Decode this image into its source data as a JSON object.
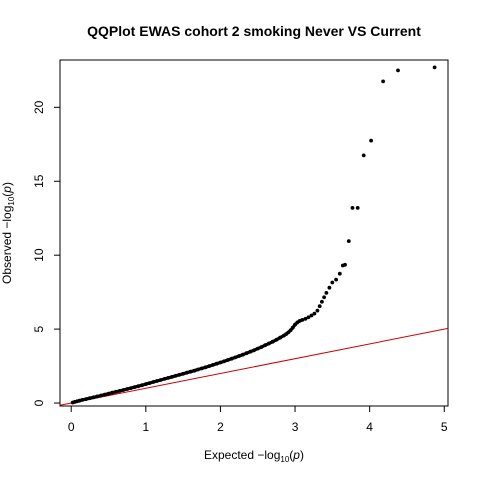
{
  "chart_data": {
    "type": "scatter",
    "title": "QQPlot EWAS cohort 2 smoking Never VS Current",
    "xlabel": {
      "prefix": "Expected  −log",
      "sub": "10",
      "middle": "(",
      "italic": "p",
      "suffix": ")"
    },
    "ylabel": {
      "prefix": "Observed  −log",
      "sub": "10",
      "middle": "(",
      "italic": "p",
      "suffix": ")"
    },
    "xlim": [
      -0.15,
      5.05
    ],
    "ylim": [
      -0.2,
      23.2
    ],
    "xticks": [
      0,
      1,
      2,
      3,
      4,
      5
    ],
    "yticks": [
      0,
      5,
      10,
      15,
      20
    ],
    "reference_line": {
      "slope": 1,
      "intercept": 0,
      "color": "#cc0000"
    },
    "point_color": "#000000",
    "points": [
      [
        0.02,
        0.04
      ],
      [
        0.05,
        0.08
      ],
      [
        0.08,
        0.12
      ],
      [
        0.11,
        0.16
      ],
      [
        0.15,
        0.21
      ],
      [
        0.2,
        0.27
      ],
      [
        0.25,
        0.33
      ],
      [
        0.3,
        0.39
      ],
      [
        0.35,
        0.45
      ],
      [
        0.4,
        0.51
      ],
      [
        0.45,
        0.57
      ],
      [
        0.5,
        0.63
      ],
      [
        0.55,
        0.7
      ],
      [
        0.6,
        0.76
      ],
      [
        0.65,
        0.82
      ],
      [
        0.7,
        0.88
      ],
      [
        0.75,
        0.95
      ],
      [
        0.8,
        1.01
      ],
      [
        0.85,
        1.08
      ],
      [
        0.9,
        1.14
      ],
      [
        0.95,
        1.21
      ],
      [
        1.0,
        1.28
      ],
      [
        1.05,
        1.35
      ],
      [
        1.1,
        1.42
      ],
      [
        1.15,
        1.49
      ],
      [
        1.2,
        1.56
      ],
      [
        1.25,
        1.63
      ],
      [
        1.3,
        1.7
      ],
      [
        1.35,
        1.77
      ],
      [
        1.4,
        1.84
      ],
      [
        1.45,
        1.91
      ],
      [
        1.5,
        1.98
      ],
      [
        1.55,
        2.05
      ],
      [
        1.6,
        2.12
      ],
      [
        1.65,
        2.19
      ],
      [
        1.7,
        2.27
      ],
      [
        1.75,
        2.34
      ],
      [
        1.8,
        2.42
      ],
      [
        1.85,
        2.5
      ],
      [
        1.9,
        2.58
      ],
      [
        1.95,
        2.66
      ],
      [
        2.0,
        2.74
      ],
      [
        2.05,
        2.82
      ],
      [
        2.1,
        2.91
      ],
      [
        2.15,
        3.0
      ],
      [
        2.2,
        3.09
      ],
      [
        2.25,
        3.18
      ],
      [
        2.3,
        3.27
      ],
      [
        2.35,
        3.37
      ],
      [
        2.4,
        3.47
      ],
      [
        2.45,
        3.57
      ],
      [
        2.5,
        3.68
      ],
      [
        2.55,
        3.79
      ],
      [
        2.6,
        3.91
      ],
      [
        2.65,
        4.03
      ],
      [
        2.7,
        4.15
      ],
      [
        2.75,
        4.28
      ],
      [
        2.8,
        4.42
      ],
      [
        2.85,
        4.56
      ],
      [
        2.88,
        4.66
      ],
      [
        2.91,
        4.78
      ],
      [
        2.94,
        4.92
      ],
      [
        2.97,
        5.1
      ],
      [
        3.0,
        5.3
      ],
      [
        3.03,
        5.45
      ],
      [
        3.06,
        5.55
      ],
      [
        3.1,
        5.62
      ],
      [
        3.14,
        5.7
      ],
      [
        3.18,
        5.8
      ],
      [
        3.22,
        5.92
      ],
      [
        3.26,
        6.05
      ],
      [
        3.3,
        6.25
      ],
      [
        3.33,
        6.55
      ],
      [
        3.36,
        6.85
      ],
      [
        3.39,
        7.15
      ],
      [
        3.42,
        7.45
      ],
      [
        3.46,
        7.8
      ],
      [
        3.5,
        8.15
      ],
      [
        3.55,
        8.35
      ],
      [
        3.6,
        8.75
      ],
      [
        3.64,
        9.3
      ],
      [
        3.67,
        9.35
      ],
      [
        3.72,
        10.95
      ],
      [
        3.77,
        13.2
      ],
      [
        3.84,
        13.2
      ],
      [
        3.92,
        16.75
      ],
      [
        4.02,
        17.75
      ],
      [
        4.18,
        21.75
      ],
      [
        4.38,
        22.5
      ],
      [
        4.87,
        22.7
      ]
    ]
  }
}
